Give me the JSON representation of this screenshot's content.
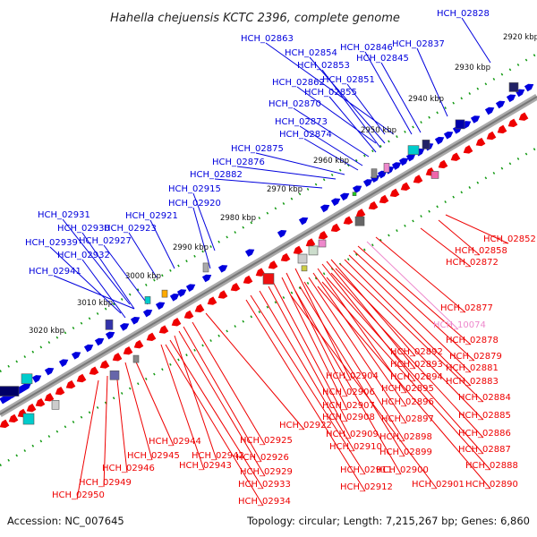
{
  "title": "Hahella chejuensis KCTC 2396, complete genome",
  "footer": {
    "accession": "Accession: NC_007645",
    "summary": "Topology: circular; Length: 7,215,267 bp; Genes: 6,860"
  },
  "colors": {
    "forward": "#0000dd",
    "reverse": "#ee0000",
    "highlight": "#ee88cc",
    "tick": "#119911",
    "axis": "#999999"
  },
  "kbp_ticks": [
    "2920 kbp",
    "2930 kbp",
    "2940 kbp",
    "2950 kbp",
    "2960 kbp",
    "2970 kbp",
    "2980 kbp",
    "2990 kbp",
    "3000 kbp",
    "3010 kbp",
    "3020 kbp"
  ],
  "forward_labels": [
    "HCH_02828",
    "HCH_02837",
    "HCH_02846",
    "HCH_02845",
    "HCH_02863",
    "HCH_02854",
    "HCH_02853",
    "HCH_02851",
    "HCH_02862",
    "HCH_02855",
    "HCH_02870",
    "HCH_02873",
    "HCH_02874",
    "HCH_02875",
    "HCH_02876",
    "HCH_02882",
    "HCH_02915",
    "HCH_02920",
    "HCH_02921",
    "HCH_02923",
    "HCH_02931",
    "HCH_02930",
    "HCH_02927",
    "HCH_02939",
    "HCH_02932",
    "HCH_02941"
  ],
  "reverse_labels": [
    "HCH_02852",
    "HCH_02858",
    "HCH_02872",
    "HCH_02877",
    "HCH_10074",
    "HCH_02878",
    "HCH_02879",
    "HCH_02892",
    "HCH_02881",
    "HCH_02893",
    "HCH_02883",
    "HCH_02894",
    "HCH_02904",
    "HCH_02895",
    "HCH_02884",
    "HCH_02906",
    "HCH_02896",
    "HCH_02907",
    "HCH_02885",
    "HCH_02897",
    "HCH_02908",
    "HCH_02886",
    "HCH_02909",
    "HCH_02898",
    "HCH_02887",
    "HCH_02922",
    "HCH_02899",
    "HCH_02910",
    "HCH_02888",
    "HCH_02925",
    "HCH_02900",
    "HCH_02911",
    "HCH_02890",
    "HCH_02926",
    "HCH_02901",
    "HCH_02912",
    "HCH_02944",
    "HCH_02942",
    "HCH_02929",
    "HCH_02945",
    "HCH_02943",
    "HCH_02933",
    "HCH_02946",
    "HCH_02934",
    "HCH_02949",
    "HCH_02950"
  ]
}
